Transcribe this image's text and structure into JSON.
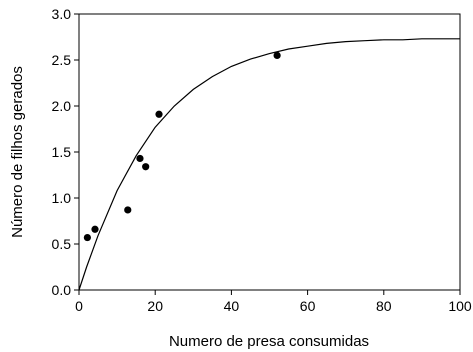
{
  "chart_data": {
    "type": "scatter",
    "xlabel": "Numero de presa consumidas",
    "ylabel": "Número de filhos gerados",
    "xlim": [
      0,
      100
    ],
    "ylim": [
      0,
      3.0
    ],
    "x_ticks": [
      "0",
      "20",
      "40",
      "60",
      "80",
      "100"
    ],
    "y_ticks": [
      "0.0",
      "0.5",
      "1.0",
      "1.5",
      "2.0",
      "2.5",
      "3.0"
    ],
    "grid": false,
    "legend": "none",
    "series": [
      {
        "kind": "points",
        "x": [
          2.2,
          4.2,
          12.8,
          16.0,
          17.5,
          21.0,
          52.0
        ],
        "y": [
          0.57,
          0.66,
          0.87,
          1.43,
          1.34,
          1.91,
          2.55
        ]
      }
    ],
    "fit_curve": {
      "x": [
        0,
        2,
        5,
        10,
        15,
        20,
        25,
        30,
        35,
        40,
        45,
        50,
        55,
        60,
        65,
        70,
        75,
        80,
        85,
        90,
        95,
        100
      ],
      "y": [
        0.0,
        0.25,
        0.59,
        1.08,
        1.46,
        1.77,
        2.0,
        2.18,
        2.32,
        2.43,
        2.51,
        2.57,
        2.62,
        2.65,
        2.68,
        2.7,
        2.71,
        2.72,
        2.72,
        2.73,
        2.73,
        2.73
      ]
    },
    "colors": {
      "points": "#000000",
      "line": "#000000"
    }
  }
}
